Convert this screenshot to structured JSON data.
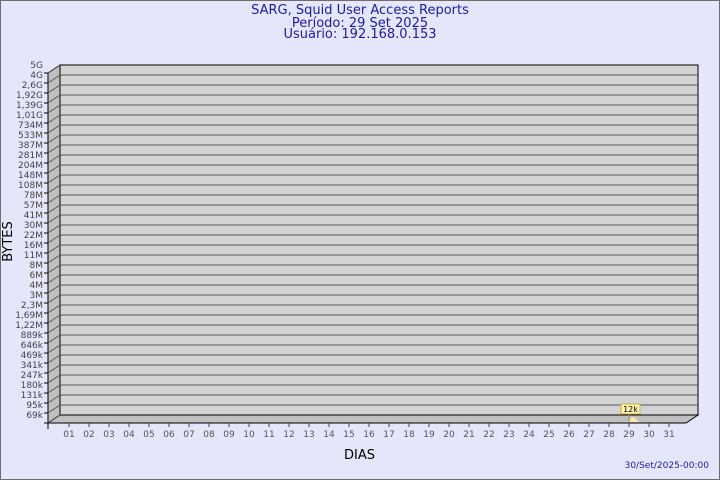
{
  "chart_data": {
    "type": "bar",
    "title": "SARG, Squid User Access Reports",
    "subtitle_period": "Período: 29 Set 2025",
    "subtitle_user": "Usuário: 192.168.0.153",
    "xlabel": "DIAS",
    "ylabel": "BYTES",
    "y_scale": "log",
    "y_ticks": [
      "5G",
      "4G",
      "2,6G",
      "1,92G",
      "1,39G",
      "1,01G",
      "734M",
      "533M",
      "387M",
      "281M",
      "204M",
      "148M",
      "108M",
      "78M",
      "57M",
      "41M",
      "30M",
      "22M",
      "16M",
      "11M",
      "8M",
      "6M",
      "4M",
      "3M",
      "2,3M",
      "1,69M",
      "1,22M",
      "889k",
      "646k",
      "469k",
      "341k",
      "247k",
      "180k",
      "131k",
      "95k",
      "69k"
    ],
    "categories": [
      "01",
      "02",
      "03",
      "04",
      "05",
      "06",
      "07",
      "08",
      "09",
      "10",
      "11",
      "12",
      "13",
      "14",
      "15",
      "16",
      "17",
      "18",
      "19",
      "20",
      "21",
      "22",
      "23",
      "24",
      "25",
      "26",
      "27",
      "28",
      "29",
      "30",
      "31"
    ],
    "series": [
      {
        "values": [
          null,
          null,
          null,
          null,
          null,
          null,
          null,
          null,
          null,
          null,
          null,
          null,
          null,
          null,
          null,
          null,
          null,
          null,
          null,
          null,
          null,
          null,
          null,
          null,
          null,
          null,
          null,
          null,
          12000,
          null,
          null
        ],
        "data_labels": {
          "29": "12k"
        }
      }
    ],
    "grid": true,
    "colors": {
      "background": "#e6e6fa",
      "plot": "#d3d3d3",
      "side": "#c0c0c0",
      "bar": "#fde8a0",
      "label_bg": "#fff5b0",
      "title": "#1c1ca0"
    }
  },
  "timestamp": "30/Set/2025-00:00"
}
